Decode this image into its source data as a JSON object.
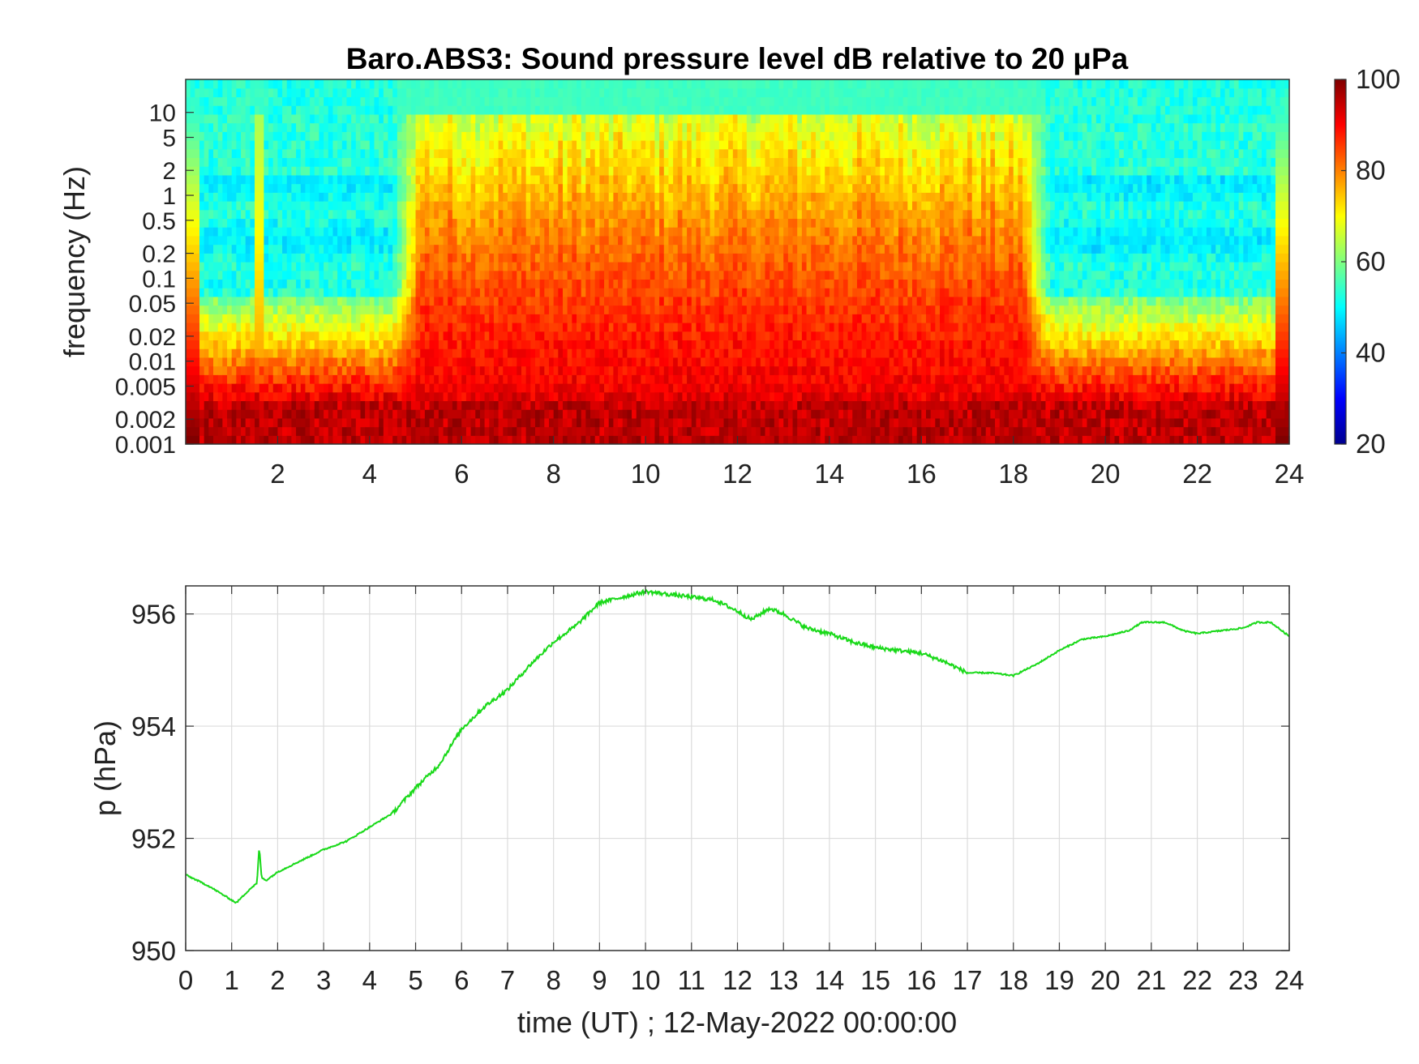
{
  "chart_data": [
    {
      "type": "heatmap",
      "title": "Baro.ABS3: Sound pressure level dB relative to 20 μPa",
      "ylabel": "frequency (Hz)",
      "xlabel": "",
      "xlim": [
        0,
        24
      ],
      "x_ticks": [
        "2",
        "4",
        "6",
        "8",
        "10",
        "12",
        "14",
        "16",
        "18",
        "20",
        "22",
        "24"
      ],
      "y_scale": "log",
      "ylim": [
        0.001,
        25
      ],
      "y_ticks": [
        "10",
        "5",
        "2",
        "1",
        "0.5",
        "0.2",
        "0.1",
        "0.05",
        "0.02",
        "0.01",
        "0.005",
        "0.002",
        "0.001"
      ],
      "colorbar": {
        "colormap": "jet",
        "range": [
          20,
          100
        ],
        "ticks": [
          "100",
          "80",
          "60",
          "40",
          "20"
        ]
      },
      "description_values": {
        "quiet_periods_hours": [
          [
            0,
            4.5
          ],
          [
            18.8,
            24
          ]
        ],
        "loud_period_hours": [
          4.5,
          18.8
        ],
        "spike_hour": 1.6
      }
    },
    {
      "type": "line",
      "xlabel": "time (UT) ; 12-May-2022 00:00:00",
      "ylabel": "p (hPa)",
      "xlim": [
        0,
        24
      ],
      "ylim": [
        950,
        956.5
      ],
      "x_ticks": [
        "0",
        "1",
        "2",
        "3",
        "4",
        "5",
        "6",
        "7",
        "8",
        "9",
        "10",
        "11",
        "12",
        "13",
        "14",
        "15",
        "16",
        "17",
        "18",
        "19",
        "20",
        "21",
        "22",
        "23",
        "24"
      ],
      "y_ticks": [
        "956",
        "954",
        "952",
        "950"
      ],
      "grid": true,
      "color": "#19d919",
      "series": [
        {
          "x": [
            0,
            0.5,
            0.9,
            1.1,
            1.4,
            1.55,
            1.6,
            1.65,
            1.75,
            2,
            2.5,
            3,
            3.5,
            4,
            4.5,
            5,
            5.5,
            6,
            6.5,
            7,
            7.5,
            8,
            8.5,
            9,
            9.5,
            10,
            10.5,
            11,
            11.5,
            12,
            12.3,
            12.7,
            13,
            13.5,
            14,
            14.5,
            15,
            15.5,
            16,
            16.5,
            17,
            17.5,
            18,
            18.5,
            19,
            19.5,
            20,
            20.5,
            20.8,
            21.3,
            21.7,
            22,
            22.5,
            23,
            23.3,
            23.6,
            24
          ],
          "values": [
            951.35,
            951.15,
            950.95,
            950.85,
            951.1,
            951.2,
            951.85,
            951.3,
            951.25,
            951.4,
            951.6,
            951.8,
            951.95,
            952.2,
            952.45,
            952.9,
            953.3,
            953.95,
            954.35,
            954.65,
            955.1,
            955.5,
            955.8,
            956.2,
            956.3,
            956.4,
            956.35,
            956.3,
            956.25,
            956.05,
            955.9,
            956.1,
            956.0,
            955.75,
            955.65,
            955.5,
            955.4,
            955.35,
            955.3,
            955.15,
            954.95,
            954.95,
            954.9,
            955.1,
            955.35,
            955.55,
            955.6,
            955.7,
            955.85,
            955.85,
            955.7,
            955.65,
            955.7,
            955.75,
            955.85,
            955.85,
            955.6
          ]
        }
      ]
    }
  ]
}
